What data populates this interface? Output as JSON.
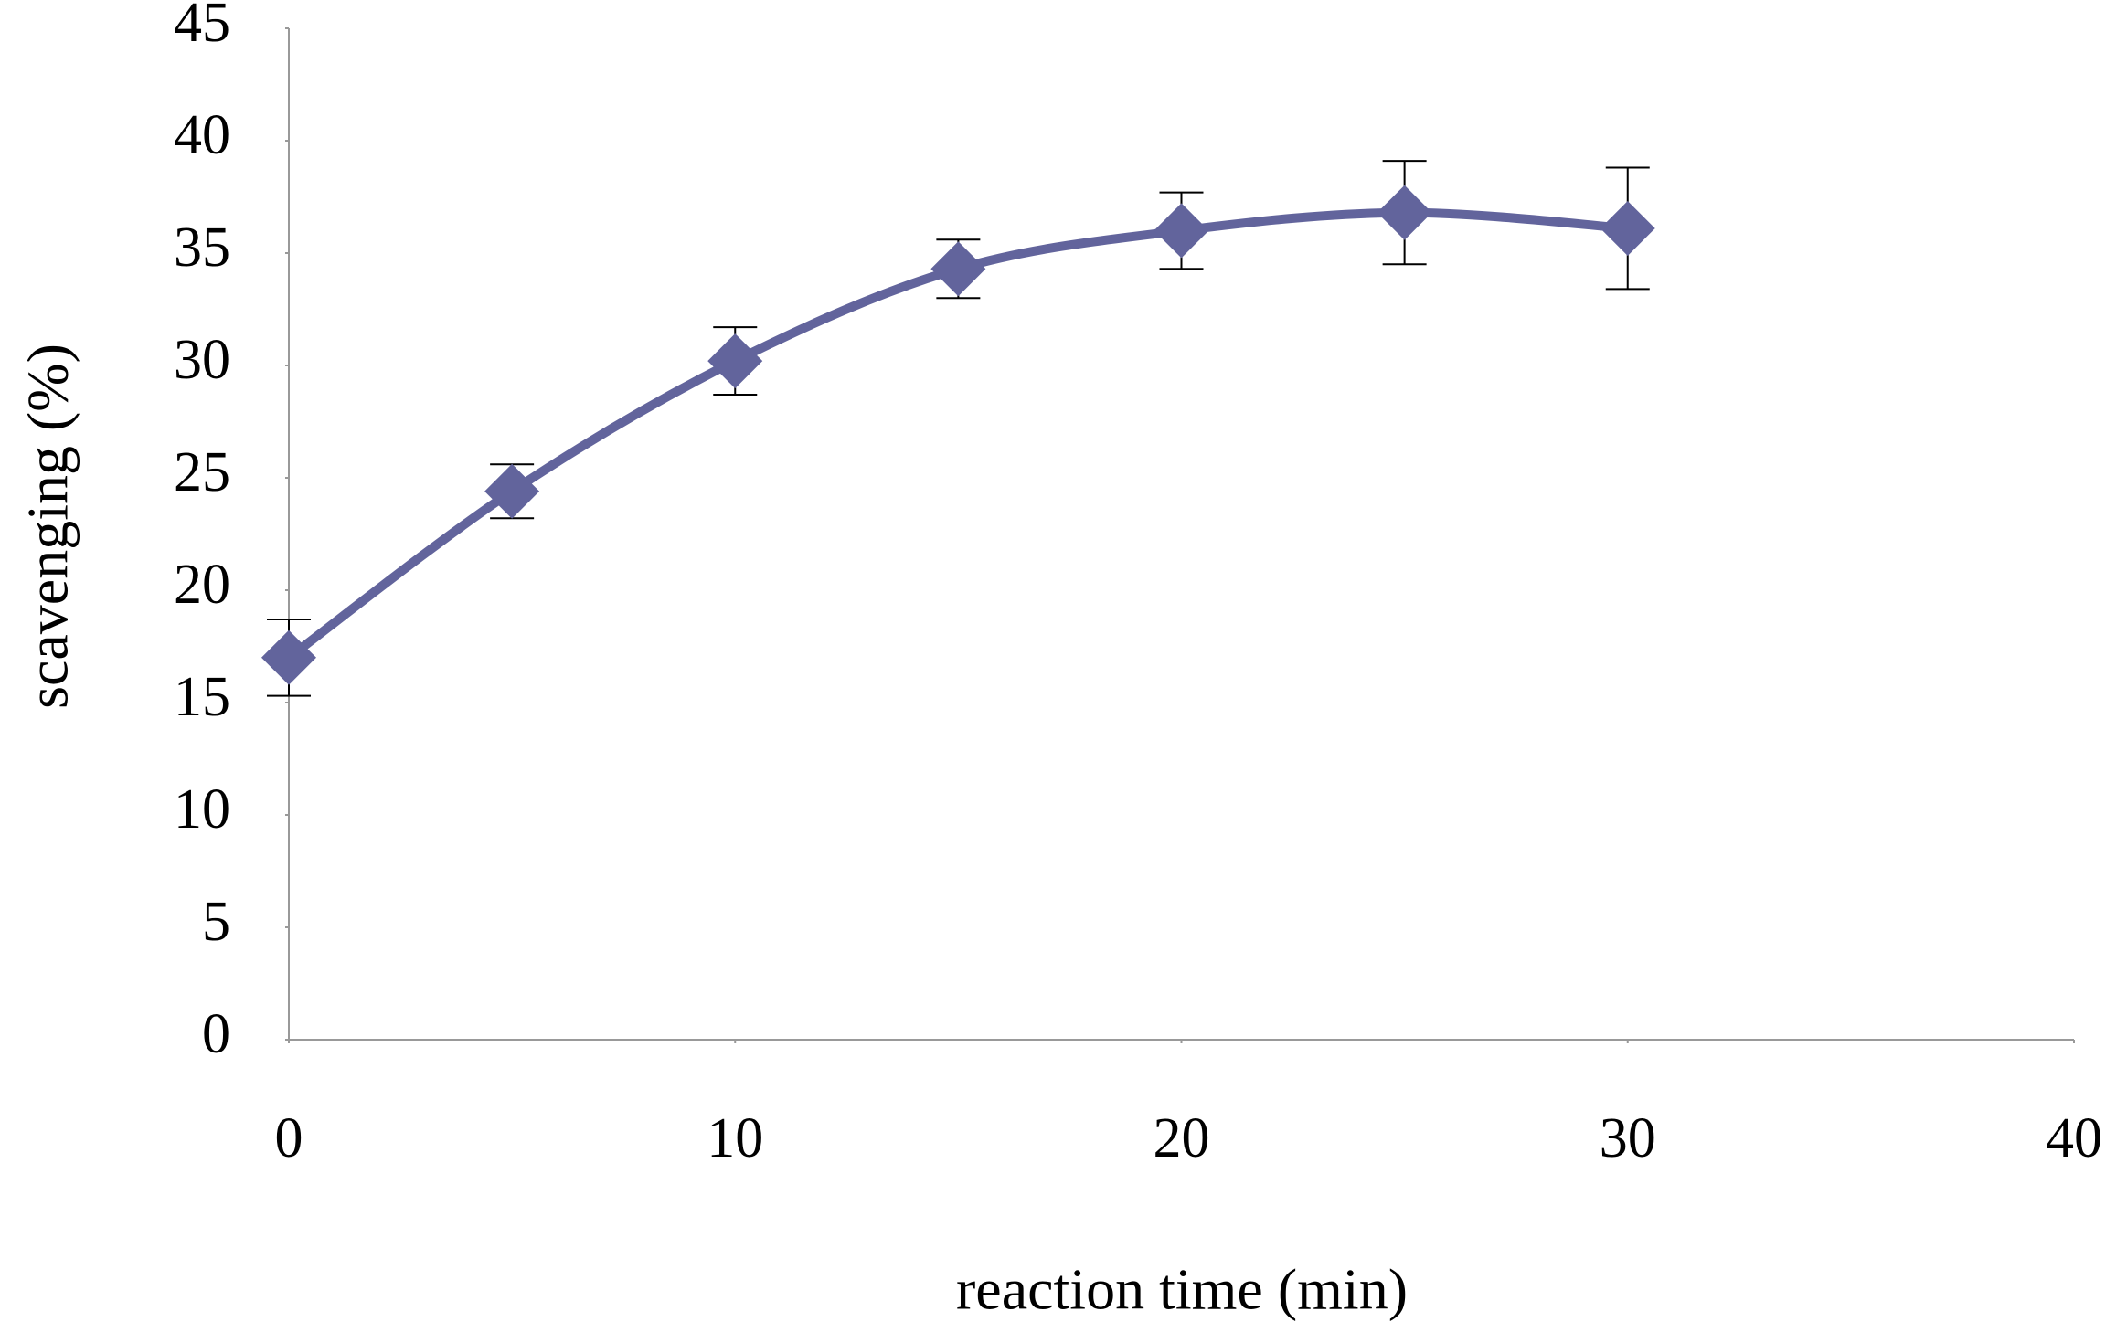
{
  "chart_data": {
    "type": "line",
    "x_label": "reaction time (min)",
    "y_label": "scavenging (%)",
    "x": [
      0,
      5,
      10,
      15,
      20,
      25,
      30
    ],
    "series": [
      {
        "name": "scavenging",
        "color": "#62649c",
        "values": [
          17,
          24.4,
          30.2,
          34.3,
          36.0,
          36.8,
          36.1
        ],
        "errors": [
          1.7,
          1.2,
          1.5,
          1.3,
          1.7,
          2.3,
          2.7
        ]
      }
    ],
    "xlim": [
      0,
      40
    ],
    "xticks": [
      0,
      10,
      20,
      30,
      40
    ],
    "ylim": [
      0,
      45
    ],
    "yticks": [
      0,
      5,
      10,
      15,
      20,
      25,
      30,
      35,
      40,
      45
    ],
    "grid": false,
    "smooth": true
  }
}
